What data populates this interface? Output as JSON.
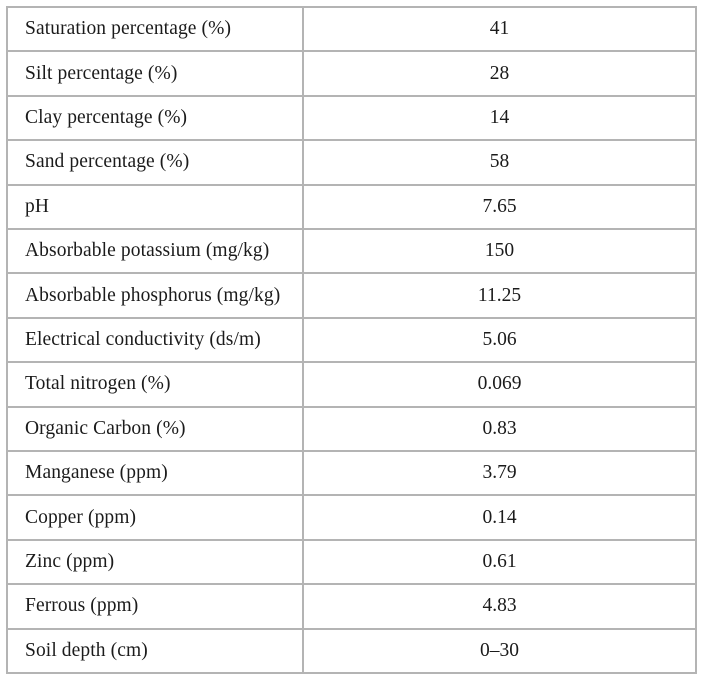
{
  "table": {
    "rows": [
      {
        "label": "Saturation percentage (%)",
        "value": "41"
      },
      {
        "label": "Silt percentage (%)",
        "value": "28"
      },
      {
        "label": "Clay percentage (%)",
        "value": "14"
      },
      {
        "label": "Sand percentage (%)",
        "value": "58"
      },
      {
        "label": "pH",
        "value": "7.65"
      },
      {
        "label": "Absorbable potassium (mg/kg)",
        "value": "150"
      },
      {
        "label": "Absorbable phosphorus (mg/kg)",
        "value": "11.25"
      },
      {
        "label": "Electrical conductivity (ds/m)",
        "value": "5.06"
      },
      {
        "label": "Total nitrogen (%)",
        "value": "0.069"
      },
      {
        "label": "Organic Carbon (%)",
        "value": "0.83"
      },
      {
        "label": "Manganese (ppm)",
        "value": "3.79"
      },
      {
        "label": "Copper (ppm)",
        "value": "0.14"
      },
      {
        "label": "Zinc (ppm)",
        "value": "0.61"
      },
      {
        "label": "Ferrous (ppm)",
        "value": "4.83"
      },
      {
        "label": "Soil depth (cm)",
        "value": "0–30"
      }
    ]
  },
  "colors": {
    "border": "#b4b4b4",
    "text": "#1b1b1b",
    "background": "#ffffff"
  }
}
